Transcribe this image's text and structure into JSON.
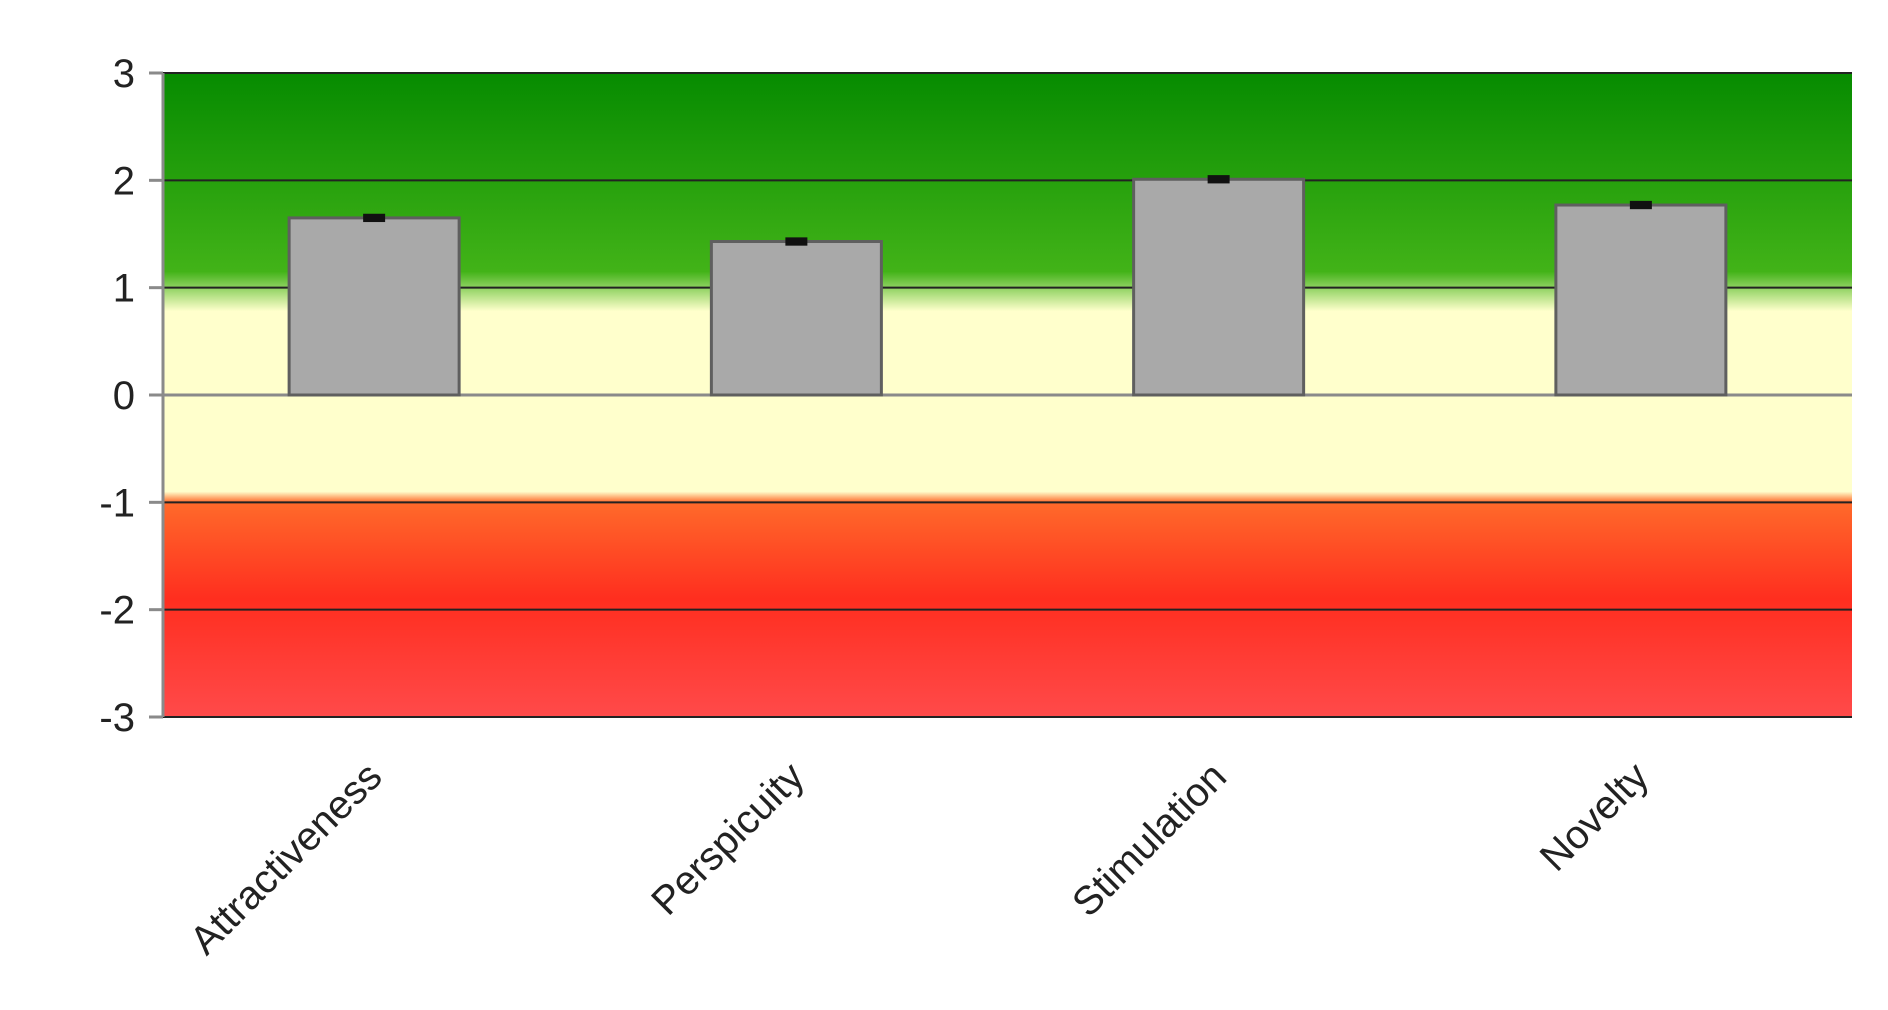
{
  "chart_data": {
    "type": "bar",
    "categories": [
      "Attractiveness",
      "Perspicuity",
      "Stimulation",
      "Novelty"
    ],
    "values": [
      1.65,
      1.43,
      2.01,
      1.77
    ],
    "error": [
      0.02,
      0.02,
      0.02,
      0.02
    ],
    "title": "",
    "xlabel": "",
    "ylabel": "",
    "ylim": [
      -3,
      3
    ],
    "yticks": [
      "3",
      "2",
      "1",
      "0",
      "-1",
      "-2",
      "-3"
    ],
    "grid": true,
    "legend": "none",
    "colors": {
      "bar_fill": "#a9a9a9",
      "bar_stroke": "#5f5f5f",
      "band_good_top": "#068b00",
      "band_good_bottom": "#42b318",
      "band_neutral": "#ffffcc",
      "band_bad_top": "#ff6a2a",
      "band_bad_bottom": "#ff4a4a",
      "gridline": "#222222"
    }
  }
}
